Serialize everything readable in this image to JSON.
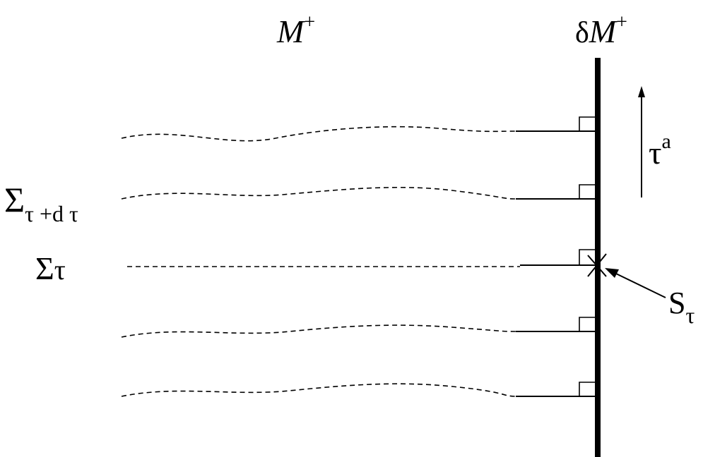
{
  "labels": {
    "manifold": {
      "base": "M",
      "sup": "+"
    },
    "boundary": {
      "prefix": "δ",
      "base": "M",
      "sup": "+"
    },
    "tangent": {
      "base": "τ",
      "sup": "a"
    },
    "sigma_next": {
      "base": "Σ",
      "sub": "τ +d τ"
    },
    "sigma": {
      "base": "Σ",
      "sub": "τ"
    },
    "surface": {
      "base": "S",
      "sub": "τ"
    }
  },
  "slices": [
    {
      "role": "slice"
    },
    {
      "role": "slice-next"
    },
    {
      "role": "slice-current"
    },
    {
      "role": "slice"
    },
    {
      "role": "slice"
    }
  ],
  "colors": {
    "ink": "#000000",
    "background": "#ffffff"
  }
}
